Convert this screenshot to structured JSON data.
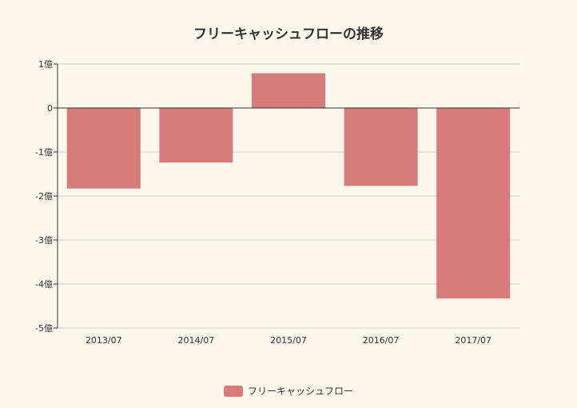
{
  "chart_data": {
    "type": "bar",
    "title": "フリーキャッシュフローの推移",
    "categories": [
      "2013/07",
      "2014/07",
      "2015/07",
      "2016/07",
      "2017/07"
    ],
    "series": [
      {
        "name": "フリーキャッシュフロー",
        "values": [
          -1.83,
          -1.24,
          0.79,
          -1.77,
          -4.33
        ],
        "color": "#d77c7a"
      }
    ],
    "unit": "億",
    "ylim": [
      -5,
      1
    ],
    "yticks": [
      1,
      0,
      -1,
      -2,
      -3,
      -4,
      -5
    ],
    "ytick_labels": [
      "1億",
      "0",
      "-1億",
      "-2億",
      "-3億",
      "-4億",
      "-5億"
    ],
    "xlabel": "",
    "ylabel": "",
    "grid": true,
    "legend_position": "bottom"
  }
}
